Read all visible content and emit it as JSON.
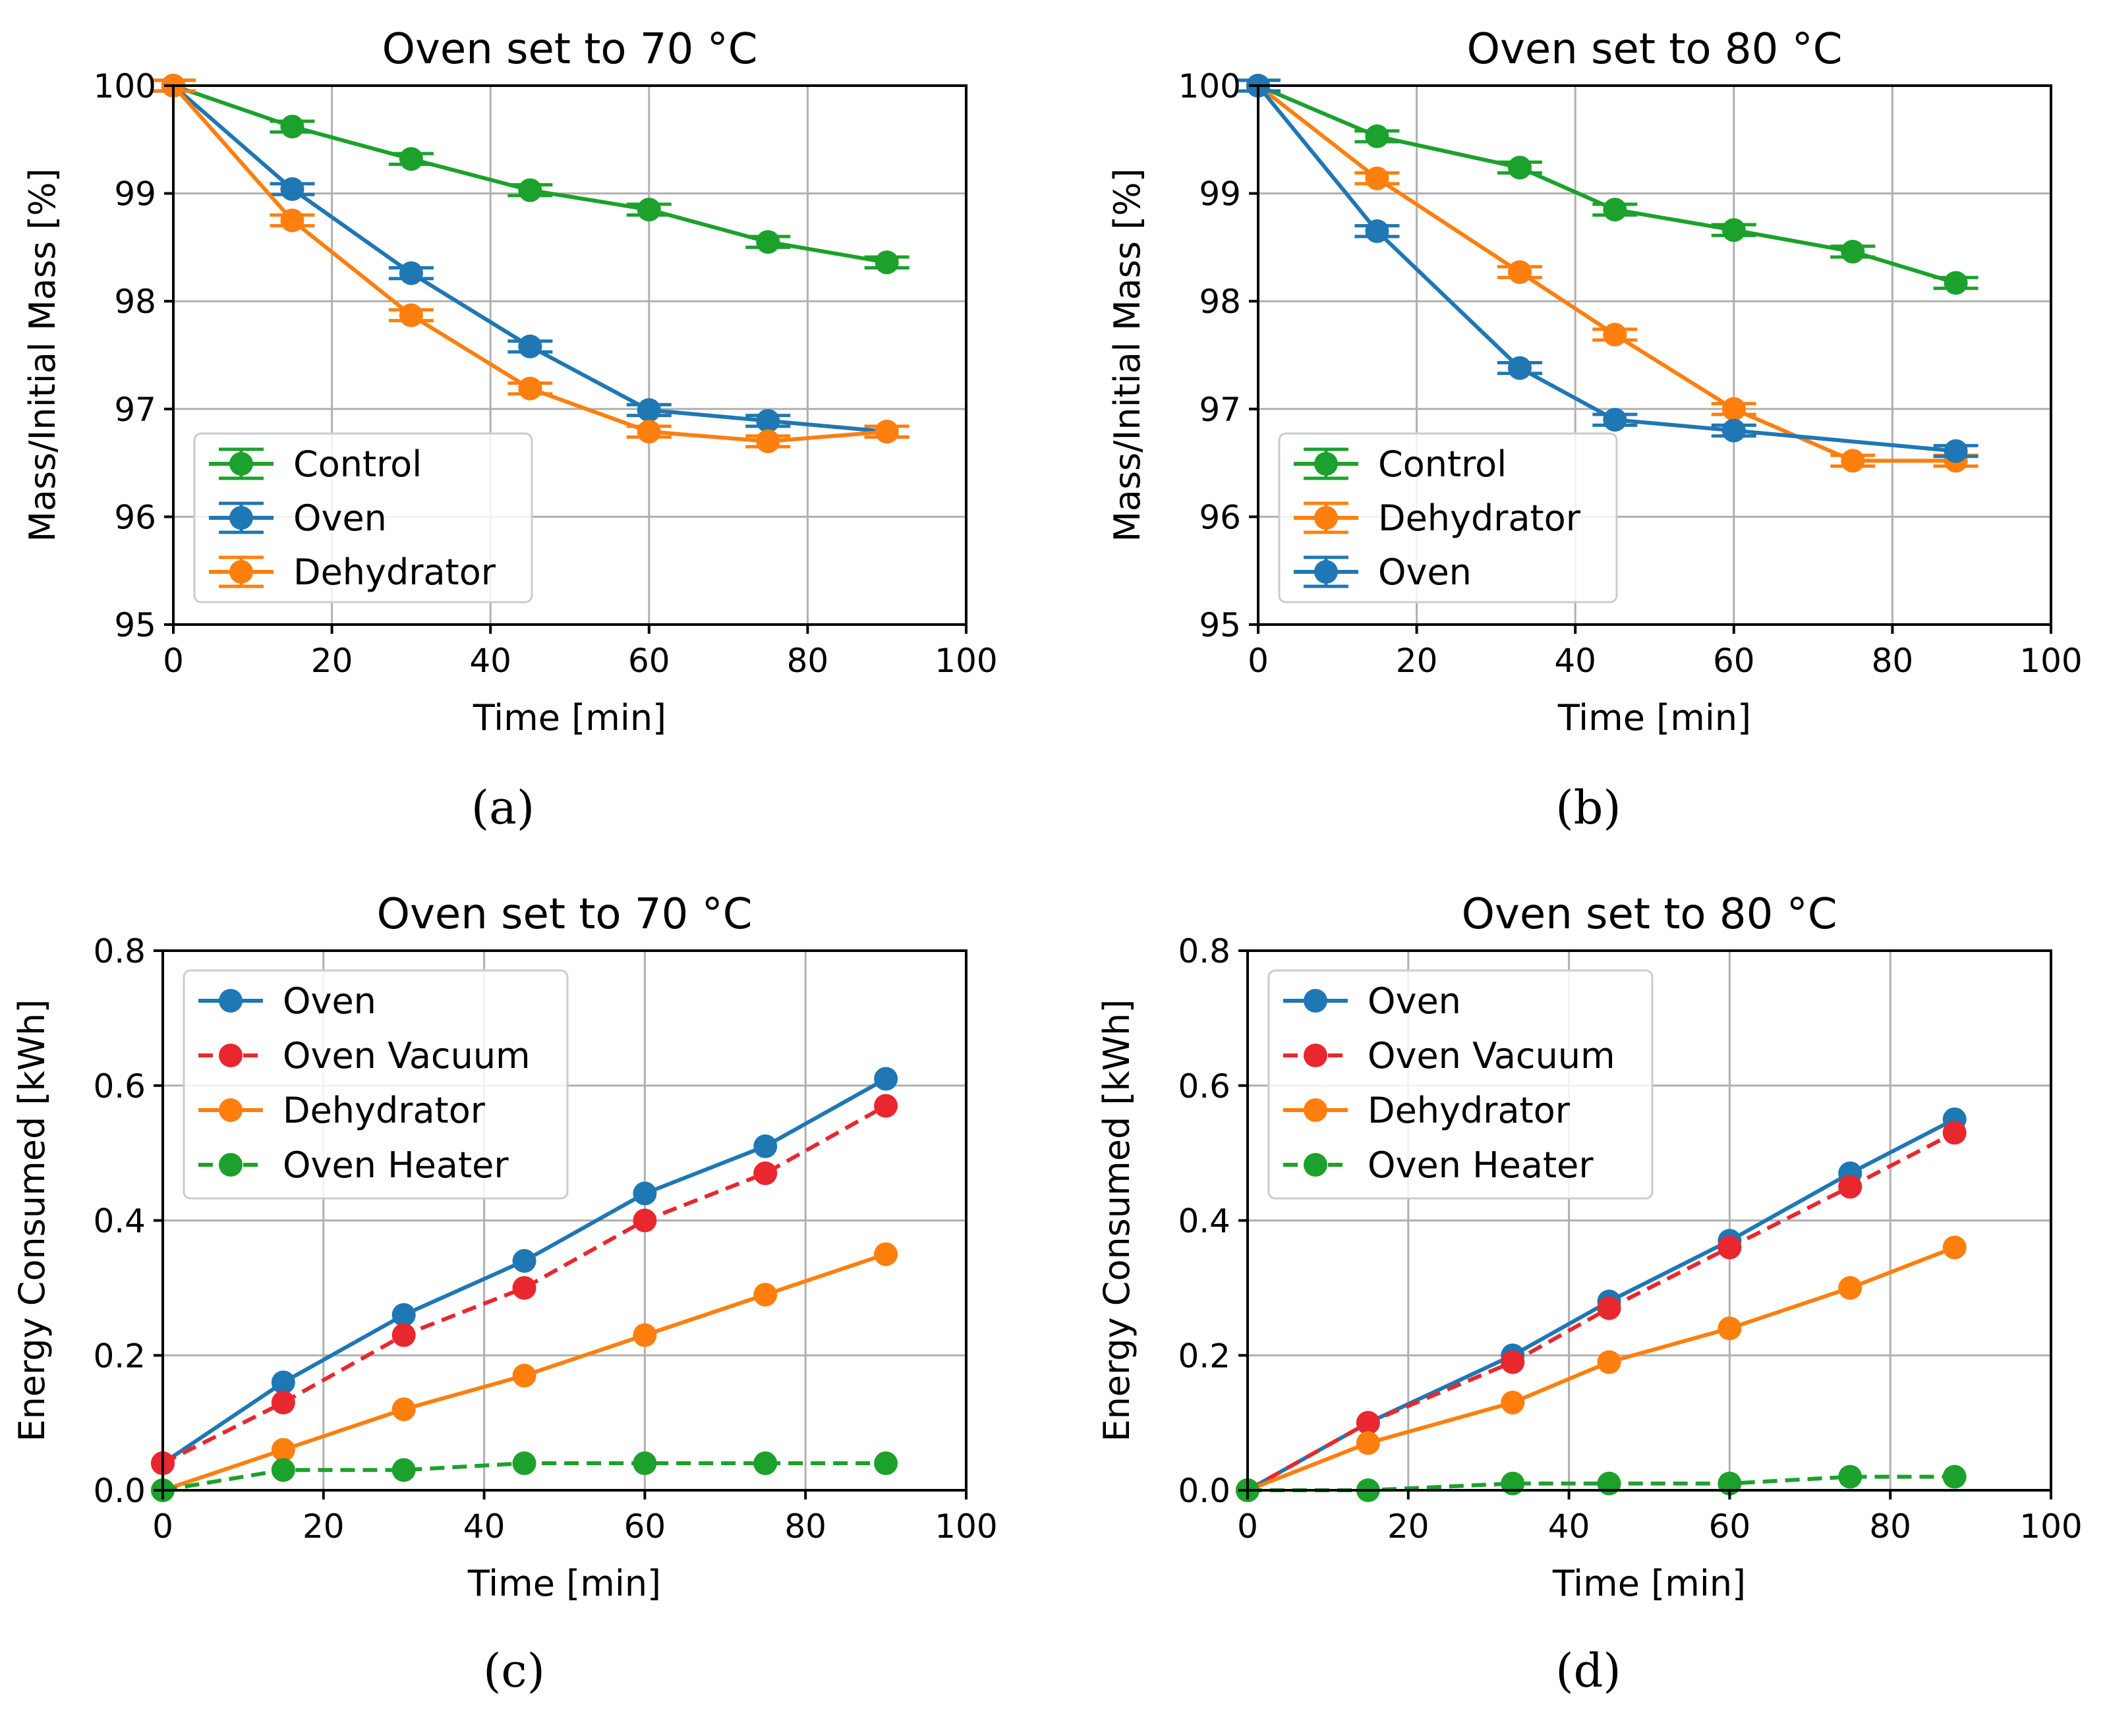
{
  "colors": {
    "blue": "#1f77b4",
    "orange": "#ff7f0e",
    "green": "#1ca12c",
    "red": "#e8272e",
    "grid": "#b0b0b0"
  },
  "chart_data": [
    {
      "type": "line",
      "panel_label": "(a)",
      "title": "Oven set to 70 °C",
      "xlabel": "Time [min]",
      "ylabel": "Mass/Initial Mass [%]",
      "xlim": [
        0,
        100
      ],
      "ylim": [
        95,
        100
      ],
      "xticks": [
        0,
        20,
        40,
        60,
        80,
        100
      ],
      "yticks": [
        95,
        96,
        97,
        98,
        99,
        100
      ],
      "grid": true,
      "legend_position": "lower-left",
      "error_bars": true,
      "series": [
        {
          "name": "Control",
          "color": "#1ca12c",
          "dashed": false,
          "x": [
            0,
            15,
            30,
            45,
            60,
            75,
            90
          ],
          "y": [
            100,
            99.62,
            99.32,
            99.03,
            98.85,
            98.55,
            98.36
          ],
          "err": [
            0.05,
            0.05,
            0.05,
            0.05,
            0.05,
            0.05,
            0.05
          ]
        },
        {
          "name": "Oven",
          "color": "#1f77b4",
          "dashed": false,
          "x": [
            0,
            15,
            30,
            45,
            60,
            75,
            90
          ],
          "y": [
            100,
            99.04,
            98.26,
            97.58,
            96.99,
            96.89,
            96.79
          ],
          "err": [
            0.05,
            0.05,
            0.05,
            0.05,
            0.05,
            0.05,
            0.05
          ]
        },
        {
          "name": "Dehydrator",
          "color": "#ff7f0e",
          "dashed": false,
          "x": [
            0,
            15,
            30,
            45,
            60,
            75,
            90
          ],
          "y": [
            100,
            98.75,
            97.87,
            97.19,
            96.79,
            96.7,
            96.79
          ],
          "err": [
            0.05,
            0.05,
            0.05,
            0.05,
            0.05,
            0.05,
            0.05
          ]
        }
      ]
    },
    {
      "type": "line",
      "panel_label": "(b)",
      "title": "Oven set to 80 °C",
      "xlabel": "Time [min]",
      "ylabel": "Mass/Initial Mass [%]",
      "xlim": [
        0,
        100
      ],
      "ylim": [
        95,
        100
      ],
      "xticks": [
        0,
        20,
        40,
        60,
        80,
        100
      ],
      "yticks": [
        95,
        96,
        97,
        98,
        99,
        100
      ],
      "grid": true,
      "legend_position": "lower-left",
      "error_bars": true,
      "series": [
        {
          "name": "Control",
          "color": "#1ca12c",
          "dashed": false,
          "x": [
            0,
            15,
            33,
            45,
            60,
            75,
            88
          ],
          "y": [
            100,
            99.53,
            99.24,
            98.85,
            98.66,
            98.46,
            98.17
          ],
          "err": [
            0.05,
            0.05,
            0.05,
            0.05,
            0.05,
            0.05,
            0.05
          ]
        },
        {
          "name": "Dehydrator",
          "color": "#ff7f0e",
          "dashed": false,
          "x": [
            0,
            15,
            33,
            45,
            60,
            75,
            88
          ],
          "y": [
            100,
            99.14,
            98.27,
            97.69,
            97.0,
            96.52,
            96.52
          ],
          "err": [
            0.05,
            0.05,
            0.05,
            0.05,
            0.05,
            0.05,
            0.05
          ]
        },
        {
          "name": "Oven",
          "color": "#1f77b4",
          "dashed": false,
          "x": [
            0,
            15,
            33,
            45,
            60,
            88
          ],
          "y": [
            100,
            98.65,
            97.38,
            96.9,
            96.8,
            96.61
          ],
          "err": [
            0.05,
            0.05,
            0.05,
            0.05,
            0.05,
            0.05
          ]
        }
      ]
    },
    {
      "type": "line",
      "panel_label": "(c)",
      "title": "Oven set to 70 °C",
      "xlabel": "Time [min]",
      "ylabel": "Energy Consumed [kWh]",
      "xlim": [
        0,
        100
      ],
      "ylim": [
        0,
        0.8
      ],
      "xticks": [
        0,
        20,
        40,
        60,
        80,
        100
      ],
      "yticks": [
        0.0,
        0.2,
        0.4,
        0.6,
        0.8
      ],
      "ytick_labels": [
        "0.0",
        "0.2",
        "0.4",
        "0.6",
        "0.8"
      ],
      "grid": true,
      "legend_position": "upper-left",
      "error_bars": false,
      "series": [
        {
          "name": "Oven",
          "color": "#1f77b4",
          "dashed": false,
          "x": [
            0,
            15,
            30,
            45,
            60,
            75,
            90
          ],
          "y": [
            0.04,
            0.16,
            0.26,
            0.34,
            0.44,
            0.51,
            0.61
          ]
        },
        {
          "name": "Oven Vacuum",
          "color": "#e8272e",
          "dashed": true,
          "x": [
            0,
            15,
            30,
            45,
            60,
            75,
            90
          ],
          "y": [
            0.04,
            0.13,
            0.23,
            0.3,
            0.4,
            0.47,
            0.57
          ]
        },
        {
          "name": "Dehydrator",
          "color": "#ff7f0e",
          "dashed": false,
          "x": [
            0,
            15,
            30,
            45,
            60,
            75,
            90
          ],
          "y": [
            0.0,
            0.06,
            0.12,
            0.17,
            0.23,
            0.29,
            0.35
          ]
        },
        {
          "name": "Oven Heater",
          "color": "#1ca12c",
          "dashed": true,
          "x": [
            0,
            15,
            30,
            45,
            60,
            75,
            90
          ],
          "y": [
            0.0,
            0.03,
            0.03,
            0.04,
            0.04,
            0.04,
            0.04
          ]
        }
      ]
    },
    {
      "type": "line",
      "panel_label": "(d)",
      "title": "Oven set to 80 °C",
      "xlabel": "Time [min]",
      "ylabel": "Energy Consumed [kWh]",
      "xlim": [
        0,
        100
      ],
      "ylim": [
        0,
        0.8
      ],
      "xticks": [
        0,
        20,
        40,
        60,
        80,
        100
      ],
      "yticks": [
        0.0,
        0.2,
        0.4,
        0.6,
        0.8
      ],
      "ytick_labels": [
        "0.0",
        "0.2",
        "0.4",
        "0.6",
        "0.8"
      ],
      "grid": true,
      "legend_position": "upper-left",
      "error_bars": false,
      "series": [
        {
          "name": "Oven",
          "color": "#1f77b4",
          "dashed": false,
          "x": [
            0,
            15,
            33,
            45,
            60,
            75,
            88
          ],
          "y": [
            0.0,
            0.1,
            0.2,
            0.28,
            0.37,
            0.47,
            0.55
          ]
        },
        {
          "name": "Oven Vacuum",
          "color": "#e8272e",
          "dashed": true,
          "x": [
            0,
            15,
            33,
            45,
            60,
            75,
            88
          ],
          "y": [
            0.0,
            0.1,
            0.19,
            0.27,
            0.36,
            0.45,
            0.53
          ]
        },
        {
          "name": "Dehydrator",
          "color": "#ff7f0e",
          "dashed": false,
          "x": [
            0,
            15,
            33,
            45,
            60,
            75,
            88
          ],
          "y": [
            0.0,
            0.07,
            0.13,
            0.19,
            0.24,
            0.3,
            0.36
          ]
        },
        {
          "name": "Oven Heater",
          "color": "#1ca12c",
          "dashed": true,
          "x": [
            0,
            15,
            33,
            45,
            60,
            75,
            88
          ],
          "y": [
            0.0,
            0.0,
            0.01,
            0.01,
            0.01,
            0.02,
            0.02
          ]
        }
      ]
    }
  ]
}
